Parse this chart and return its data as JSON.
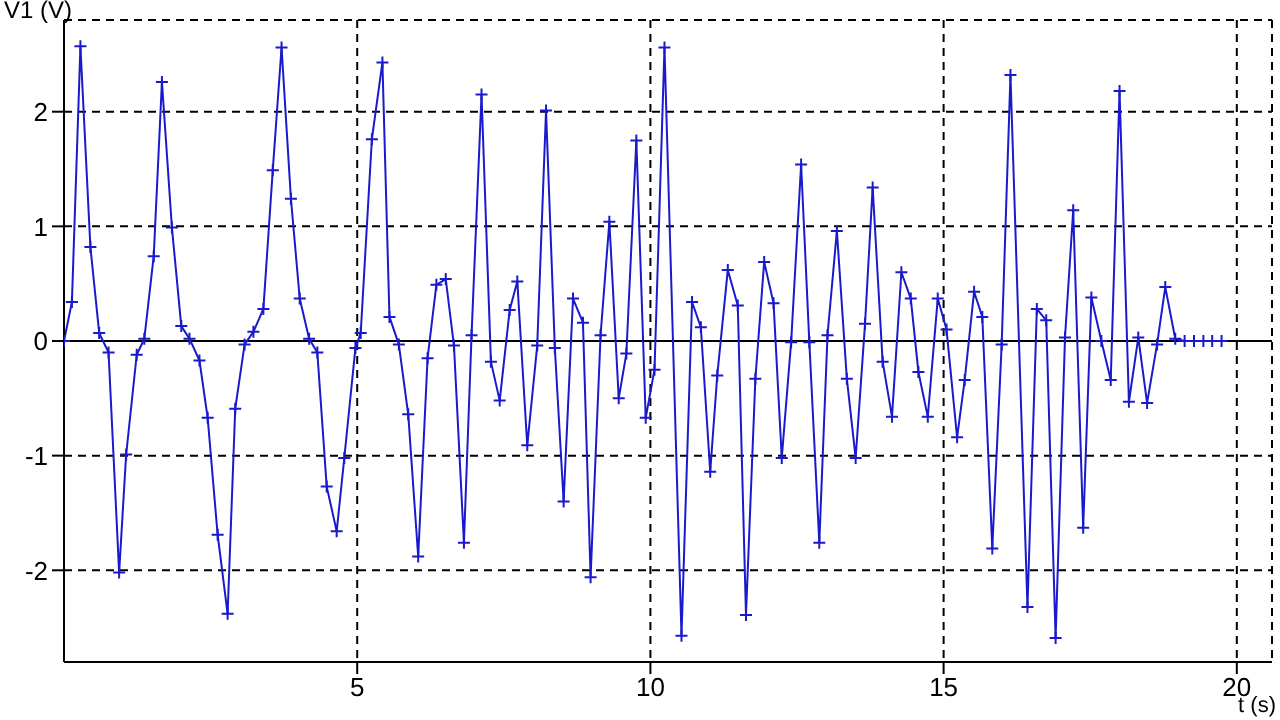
{
  "chart_data": {
    "type": "line",
    "xlabel": "t (s)",
    "ylabel": "V1 (V)",
    "x": [
      0,
      0.135,
      0.28,
      0.45,
      0.6,
      0.76,
      0.94,
      1.06,
      1.24,
      1.37,
      1.53,
      1.67,
      1.84,
      2.0,
      2.14,
      2.31,
      2.45,
      2.62,
      2.79,
      2.92,
      3.08,
      3.23,
      3.4,
      3.56,
      3.71,
      3.87,
      4.02,
      4.18,
      4.32,
      4.48,
      4.65,
      4.78,
      4.97,
      5.06,
      5.25,
      5.43,
      5.55,
      5.71,
      5.87,
      6.04,
      6.2,
      6.35,
      6.51,
      6.65,
      6.82,
      6.95,
      7.12,
      7.28,
      7.43,
      7.6,
      7.73,
      7.9,
      8.07,
      8.22,
      8.37,
      8.52,
      8.68,
      8.85,
      8.98,
      9.15,
      9.3,
      9.46,
      9.59,
      9.76,
      9.92,
      10.07,
      10.24,
      10.53,
      10.71,
      10.86,
      11.02,
      11.14,
      11.32,
      11.49,
      11.63,
      11.79,
      11.94,
      12.1,
      12.24,
      12.4,
      12.57,
      12.71,
      12.88,
      13.02,
      13.18,
      13.35,
      13.5,
      13.66,
      13.79,
      13.96,
      14.12,
      14.28,
      14.44,
      14.57,
      14.73,
      14.9,
      15.05,
      15.23,
      15.36,
      15.52,
      15.66,
      15.83,
      15.99,
      16.14,
      16.43,
      16.59,
      16.75,
      16.91,
      17.07,
      17.21,
      17.38,
      17.52,
      17.69,
      17.85,
      18.0,
      18.16,
      18.32,
      18.47,
      18.64,
      18.78,
      18.95,
      19.11,
      19.27,
      19.43,
      19.58,
      19.74
    ],
    "series": [
      {
        "color": "#1a1acc",
        "values": [
          0,
          0.34,
          2.57,
          0.82,
          0.07,
          -0.1,
          -2.02,
          -0.99,
          -0.12,
          0.02,
          0.74,
          2.26,
          0.99,
          0.13,
          0.02,
          -0.17,
          -0.67,
          -1.69,
          -2.38,
          -0.59,
          -0.03,
          0.08,
          0.28,
          1.49,
          2.56,
          1.24,
          0.37,
          0.02,
          -0.1,
          -1.27,
          -1.66,
          -1.02,
          -0.06,
          0.07,
          1.76,
          2.43,
          0.21,
          -0.03,
          -0.64,
          -1.88,
          -0.15,
          0.49,
          0.54,
          -0.04,
          -1.76,
          0.05,
          2.15,
          -0.18,
          -0.52,
          0.27,
          0.52,
          -0.91,
          -0.04,
          2.01,
          -0.06,
          -1.4,
          0.37,
          0.16,
          -2.06,
          0.05,
          1.04,
          -0.5,
          -0.11,
          1.75,
          -0.67,
          -0.25,
          2.56,
          -2.57,
          0.34,
          0.12,
          -1.14,
          -0.3,
          0.62,
          0.31,
          -2.39,
          -0.33,
          0.69,
          0.33,
          -1.02,
          -0.01,
          1.54,
          -0.01,
          -1.76,
          0.05,
          0.96,
          -0.33,
          -1.02,
          0.15,
          1.34,
          -0.18,
          -0.66,
          0.6,
          0.37,
          -0.27,
          -0.66,
          0.37,
          0.1,
          -0.84,
          -0.34,
          0.43,
          0.21,
          -1.81,
          -0.03,
          2.32,
          -2.32,
          0.28,
          0.18,
          -2.59,
          0.03,
          1.14,
          -1.63,
          0.38,
          0,
          -0.34,
          2.18,
          -0.53,
          0.03,
          -0.54,
          -0.03,
          0.47,
          0.02,
          0,
          0,
          0,
          0,
          0
        ]
      }
    ],
    "xlim": [
      0,
      20.6
    ],
    "xticks": [
      5,
      10,
      15,
      20
    ],
    "ylim": [
      -2.8,
      2.8
    ],
    "yticks": [
      -2,
      -1,
      0,
      1,
      2
    ],
    "grid": true,
    "line_style": "solid",
    "marker": "cross",
    "ref_lines": [
      {
        "axis": "y",
        "value": 0,
        "color": "#000000",
        "line_style": "solid"
      }
    ]
  }
}
